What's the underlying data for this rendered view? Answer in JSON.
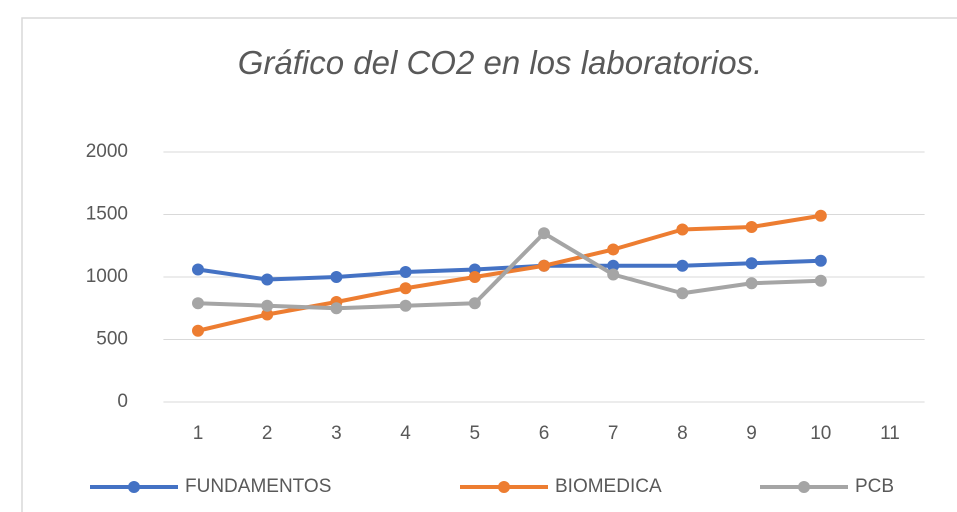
{
  "chart_data": {
    "type": "line",
    "title": "Gráfico del CO2 en los laboratorios.",
    "categories": [
      "1",
      "2",
      "3",
      "4",
      "5",
      "6",
      "7",
      "8",
      "9",
      "10",
      "11"
    ],
    "series": [
      {
        "name": "FUNDAMENTOS",
        "color": "#4472c4",
        "values": [
          1060,
          980,
          1000,
          1040,
          1060,
          1090,
          1090,
          1090,
          1110,
          1130,
          null
        ]
      },
      {
        "name": "BIOMEDICA",
        "color": "#ed7d31",
        "values": [
          570,
          700,
          800,
          910,
          1000,
          1090,
          1220,
          1380,
          1400,
          1490,
          null
        ]
      },
      {
        "name": "PCB",
        "color": "#a5a5a5",
        "values": [
          790,
          770,
          750,
          770,
          790,
          1350,
          1020,
          870,
          950,
          970,
          null
        ]
      }
    ],
    "ylim": [
      0,
      2000
    ],
    "yticks": [
      0,
      500,
      1000,
      1500,
      2000
    ],
    "grid": true,
    "legend": "bottom"
  }
}
